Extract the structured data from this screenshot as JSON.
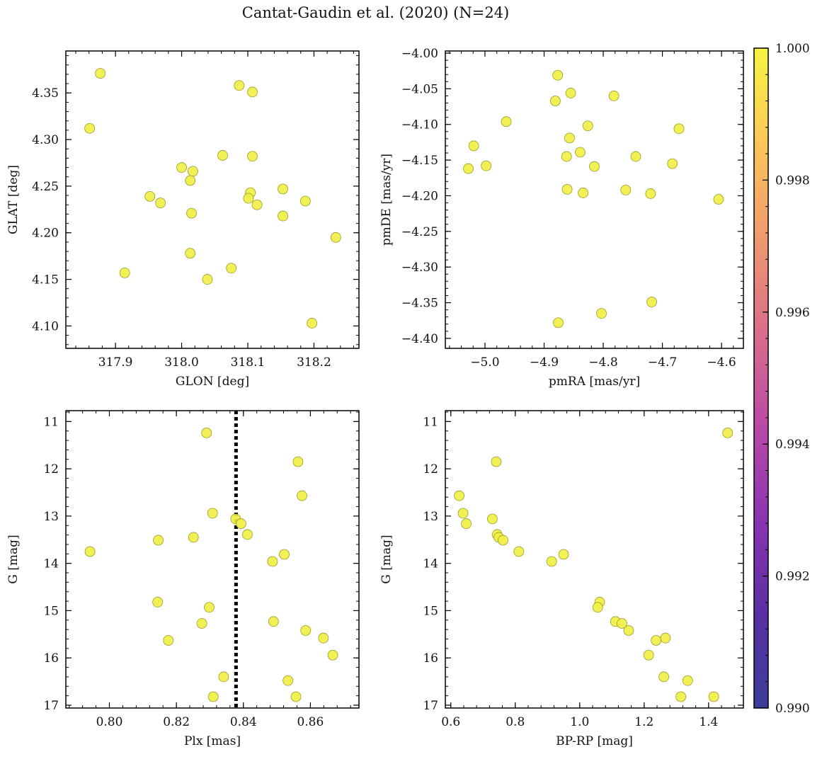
{
  "figure": {
    "title": "Cantat-Gaudin et al. (2020) (N=24)",
    "marker_color": "#f0f042",
    "marker_edge": "#9a9a2a"
  },
  "chart_data": [
    {
      "type": "scatter",
      "xlabel": "GLON [deg]",
      "ylabel": "GLAT [deg]",
      "xlim": [
        317.825,
        318.268
      ],
      "ylim": [
        4.076,
        4.395
      ],
      "xticks": [
        317.9,
        318.0,
        318.1,
        318.2
      ],
      "xtick_labels": [
        "317.9",
        "318.0",
        "318.1",
        "318.2"
      ],
      "yticks": [
        4.1,
        4.15,
        4.2,
        4.25,
        4.3,
        4.35
      ],
      "ytick_labels": [
        "4.10",
        "4.15",
        "4.20",
        "4.25",
        "4.30",
        "4.35"
      ],
      "points": [
        [
          317.877,
          4.371
        ],
        [
          317.861,
          4.312
        ],
        [
          318.087,
          4.358
        ],
        [
          318.107,
          4.351
        ],
        [
          318.062,
          4.283
        ],
        [
          318.107,
          4.282
        ],
        [
          318.0,
          4.27
        ],
        [
          318.017,
          4.266
        ],
        [
          318.013,
          4.256
        ],
        [
          317.952,
          4.239
        ],
        [
          317.968,
          4.232
        ],
        [
          318.104,
          4.243
        ],
        [
          318.101,
          4.237
        ],
        [
          318.114,
          4.23
        ],
        [
          318.153,
          4.247
        ],
        [
          318.187,
          4.234
        ],
        [
          318.015,
          4.221
        ],
        [
          318.153,
          4.218
        ],
        [
          318.233,
          4.195
        ],
        [
          318.013,
          4.178
        ],
        [
          317.914,
          4.157
        ],
        [
          318.075,
          4.162
        ],
        [
          318.039,
          4.15
        ],
        [
          318.197,
          4.103
        ]
      ]
    },
    {
      "type": "scatter",
      "xlabel": "pmRA [mas/yr]",
      "ylabel": "pmDE [mas/yr]",
      "xlim": [
        -5.067,
        -4.563
      ],
      "ylim": [
        -4.414,
        -3.997
      ],
      "xticks": [
        -5.0,
        -4.9,
        -4.8,
        -4.7,
        -4.6
      ],
      "xtick_labels": [
        "−5.0",
        "−4.9",
        "−4.8",
        "−4.7",
        "−4.6"
      ],
      "yticks": [
        -4.0,
        -4.05,
        -4.1,
        -4.15,
        -4.2,
        -4.25,
        -4.3,
        -4.35,
        -4.4
      ],
      "ytick_labels": [
        "−4.00",
        "−4.05",
        "−4.10",
        "−4.15",
        "−4.20",
        "−4.25",
        "−4.30",
        "−4.35",
        "−4.40"
      ],
      "points": [
        [
          -4.877,
          -4.031
        ],
        [
          -4.855,
          -4.056
        ],
        [
          -4.782,
          -4.06
        ],
        [
          -4.881,
          -4.067
        ],
        [
          -4.964,
          -4.096
        ],
        [
          -4.826,
          -4.102
        ],
        [
          -4.672,
          -4.106
        ],
        [
          -4.857,
          -4.119
        ],
        [
          -5.019,
          -4.13
        ],
        [
          -4.839,
          -4.139
        ],
        [
          -4.862,
          -4.145
        ],
        [
          -4.745,
          -4.145
        ],
        [
          -4.683,
          -4.155
        ],
        [
          -4.998,
          -4.158
        ],
        [
          -4.815,
          -4.159
        ],
        [
          -5.028,
          -4.162
        ],
        [
          -4.861,
          -4.191
        ],
        [
          -4.762,
          -4.192
        ],
        [
          -4.834,
          -4.196
        ],
        [
          -4.72,
          -4.197
        ],
        [
          -4.605,
          -4.205
        ],
        [
          -4.718,
          -4.349
        ],
        [
          -4.803,
          -4.365
        ],
        [
          -4.876,
          -4.378
        ]
      ]
    },
    {
      "type": "scatter",
      "xlabel": "Plx [mas]",
      "ylabel": "G [mag]",
      "xlim": [
        0.787,
        0.8745
      ],
      "ylim": [
        17.06,
        10.77
      ],
      "y_inverted": true,
      "vline": 0.8378,
      "xticks": [
        0.8,
        0.82,
        0.84,
        0.86
      ],
      "xtick_labels": [
        "0.80",
        "0.82",
        "0.84",
        "0.86"
      ],
      "yticks": [
        11,
        12,
        13,
        14,
        15,
        16,
        17
      ],
      "ytick_labels": [
        "11",
        "12",
        "13",
        "14",
        "15",
        "16",
        "17"
      ],
      "points": [
        [
          0.829,
          11.24
        ],
        [
          0.8563,
          11.85
        ],
        [
          0.8575,
          12.57
        ],
        [
          0.8308,
          12.94
        ],
        [
          0.8377,
          13.06
        ],
        [
          0.8393,
          13.16
        ],
        [
          0.8412,
          13.39
        ],
        [
          0.8251,
          13.45
        ],
        [
          0.8146,
          13.51
        ],
        [
          0.7942,
          13.75
        ],
        [
          0.8522,
          13.81
        ],
        [
          0.8487,
          13.96
        ],
        [
          0.8144,
          14.82
        ],
        [
          0.8298,
          14.93
        ],
        [
          0.8276,
          15.27
        ],
        [
          0.849,
          15.23
        ],
        [
          0.8586,
          15.42
        ],
        [
          0.8639,
          15.58
        ],
        [
          0.8176,
          15.63
        ],
        [
          0.8667,
          15.94
        ],
        [
          0.8341,
          16.4
        ],
        [
          0.8533,
          16.48
        ],
        [
          0.831,
          16.82
        ],
        [
          0.8557,
          16.82
        ]
      ]
    },
    {
      "type": "scatter",
      "xlabel": "BP-RP [mag]",
      "ylabel": "G [mag]",
      "xlim": [
        0.583,
        1.508
      ],
      "ylim": [
        17.06,
        10.77
      ],
      "y_inverted": true,
      "xticks": [
        0.6,
        0.8,
        1.0,
        1.2,
        1.4
      ],
      "xtick_labels": [
        "0.6",
        "0.8",
        "1.0",
        "1.2",
        "1.4"
      ],
      "yticks": [
        11,
        12,
        13,
        14,
        15,
        16,
        17
      ],
      "ytick_labels": [
        "11",
        "12",
        "13",
        "14",
        "15",
        "16",
        "17"
      ],
      "points": [
        [
          1.459,
          11.24
        ],
        [
          0.741,
          11.85
        ],
        [
          0.626,
          12.57
        ],
        [
          0.638,
          12.94
        ],
        [
          0.729,
          13.06
        ],
        [
          0.648,
          13.16
        ],
        [
          0.744,
          13.39
        ],
        [
          0.749,
          13.45
        ],
        [
          0.762,
          13.51
        ],
        [
          0.811,
          13.75
        ],
        [
          0.95,
          13.81
        ],
        [
          0.913,
          13.96
        ],
        [
          1.062,
          14.82
        ],
        [
          1.056,
          14.93
        ],
        [
          1.111,
          15.23
        ],
        [
          1.131,
          15.27
        ],
        [
          1.152,
          15.42
        ],
        [
          1.266,
          15.58
        ],
        [
          1.237,
          15.63
        ],
        [
          1.214,
          15.94
        ],
        [
          1.261,
          16.4
        ],
        [
          1.335,
          16.48
        ],
        [
          1.314,
          16.82
        ],
        [
          1.416,
          16.82
        ]
      ]
    }
  ],
  "colorbar": {
    "min": 0.99,
    "max": 1.0,
    "ticks": [
      0.99,
      0.992,
      0.994,
      0.996,
      0.998,
      1.0
    ],
    "tick_labels": [
      "0.990",
      "0.992",
      "0.994",
      "0.996",
      "0.998",
      "1.000"
    ],
    "colormap": "plasma",
    "stops": [
      "#3b3f9a",
      "#5a2fa3",
      "#8a34b0",
      "#b94aa6",
      "#d96e8a",
      "#ef9a6e",
      "#fcc65a",
      "#f5f542"
    ]
  }
}
